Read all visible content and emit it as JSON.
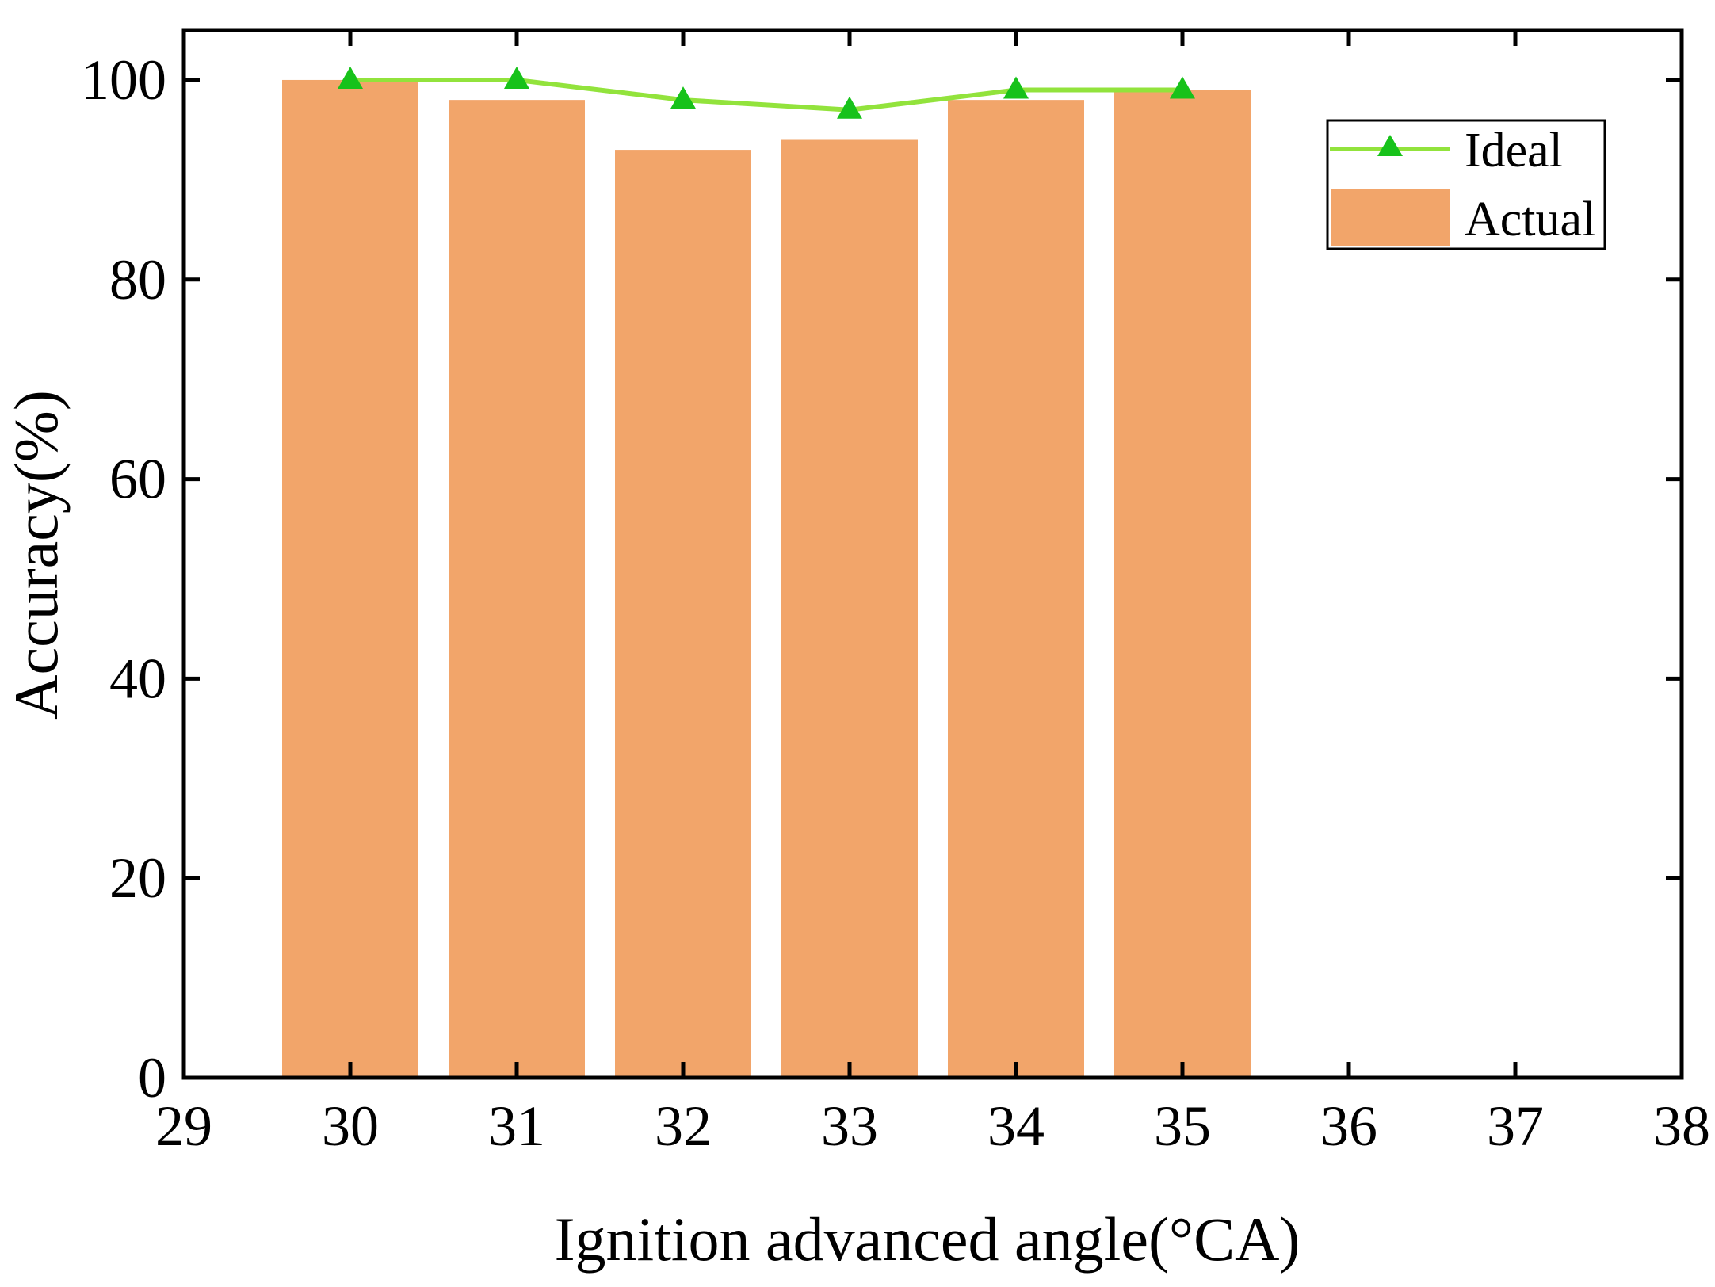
{
  "chart_data": {
    "type": "bar",
    "x": [
      30,
      31,
      32,
      33,
      34,
      35
    ],
    "series": [
      {
        "name": "Actual",
        "kind": "bar",
        "values": [
          100,
          98,
          93,
          94,
          98,
          99
        ]
      },
      {
        "name": "Ideal",
        "kind": "line",
        "marker": "triangle",
        "values": [
          100,
          100,
          98,
          97,
          99,
          99
        ]
      }
    ],
    "xlabel": "Ignition advanced angle(°CA)",
    "ylabel": "Accuracy(%)",
    "xlim": [
      29,
      38
    ],
    "ylim": [
      0,
      105
    ],
    "xticks": [
      29,
      30,
      31,
      32,
      33,
      34,
      35,
      36,
      37,
      38
    ],
    "yticks": [
      0,
      20,
      40,
      60,
      80,
      100
    ],
    "legend": {
      "position": "top-right",
      "entries": [
        "Ideal",
        "Actual"
      ]
    },
    "colors": {
      "bar": "#f2a56a",
      "line": "#92e33c",
      "marker": "#17c21a",
      "axis": "#000000"
    }
  }
}
